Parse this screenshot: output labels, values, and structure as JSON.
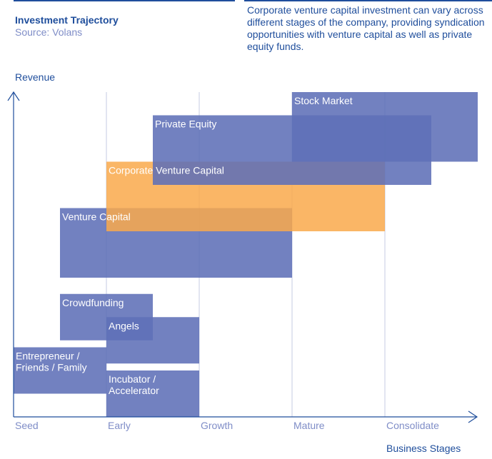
{
  "header": {
    "title": "Investment Trajectory",
    "source": "Source: Volans",
    "description": "Corporate venture capital investment can vary across different stages of the company, providing syndication opportunities with venture capital as well as private equity funds."
  },
  "colors": {
    "accent": "#1f4e9c",
    "blue_bar": "#5e6fb7",
    "orange_bar": "#f9a94b",
    "muted_text": "#7f8dc7",
    "gridline": "#c5cbe3"
  },
  "chart_data": {
    "type": "range-bar",
    "title": "Investment Trajectory",
    "subtitle": "Source: Volans",
    "xlabel": "Business Stages",
    "ylabel": "Revenue",
    "x_categories": [
      "Seed",
      "Early",
      "Growth",
      "Mature",
      "Consolidate"
    ],
    "x_range": [
      0,
      5
    ],
    "y_range": [
      0,
      14
    ],
    "grid": "vertical",
    "note": "Bars span business stages (x, in stage units starting at Seed=0) and relative revenue level (y, unitless, estimated).",
    "series": [
      {
        "name": "Entrepreneur / Friends / Family",
        "label_lines": [
          "Entrepreneur /",
          "Friends / Family"
        ],
        "x_start": 0.0,
        "x_end": 1.0,
        "y_low": 1.0,
        "y_high": 3.0,
        "color": "blue"
      },
      {
        "name": "Incubator / Accelerator",
        "label_lines": [
          "Incubator /",
          "Accelerator"
        ],
        "x_start": 1.0,
        "x_end": 2.0,
        "y_low": 0.0,
        "y_high": 2.0,
        "color": "blue"
      },
      {
        "name": "Angels",
        "label_lines": [
          "Angels"
        ],
        "x_start": 1.0,
        "x_end": 2.0,
        "y_low": 2.3,
        "y_high": 4.3,
        "color": "blue"
      },
      {
        "name": "Crowdfunding",
        "label_lines": [
          "Crowdfunding"
        ],
        "x_start": 0.5,
        "x_end": 1.5,
        "y_low": 3.3,
        "y_high": 5.3,
        "color": "blue"
      },
      {
        "name": "Venture Capital",
        "label_lines": [
          "Venture Capital"
        ],
        "x_start": 0.5,
        "x_end": 3.0,
        "y_low": 6.0,
        "y_high": 9.0,
        "color": "blue"
      },
      {
        "name": "Corporate Venture Capital",
        "label_lines": [
          "Corporate Venture Capital"
        ],
        "x_start": 1.0,
        "x_end": 4.0,
        "y_low": 8.0,
        "y_high": 11.0,
        "color": "orange"
      },
      {
        "name": "Private Equity",
        "label_lines": [
          "Private Equity"
        ],
        "x_start": 1.5,
        "x_end": 4.5,
        "y_low": 10.0,
        "y_high": 13.0,
        "color": "blue"
      },
      {
        "name": "Stock Market",
        "label_lines": [
          "Stock Market"
        ],
        "x_start": 3.0,
        "x_end": 5.0,
        "y_low": 11.0,
        "y_high": 14.0,
        "color": "blue"
      }
    ]
  }
}
